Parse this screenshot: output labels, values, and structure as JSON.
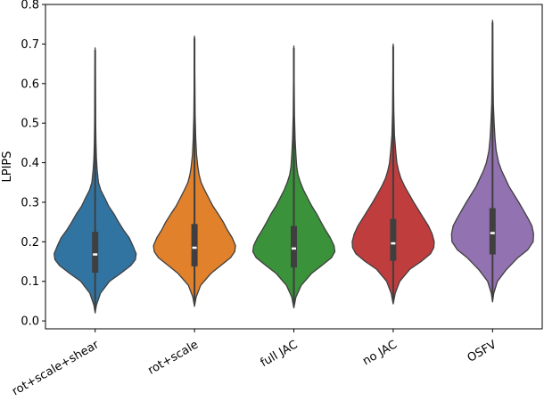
{
  "chart_data": {
    "type": "violin",
    "title": "",
    "xlabel": "",
    "ylabel": "LPIPS",
    "ylim": [
      -0.02,
      0.8
    ],
    "yticks": [
      0.0,
      0.1,
      0.2,
      0.3,
      0.4,
      0.5,
      0.6,
      0.7,
      0.8
    ],
    "ytick_labels": [
      "0.0",
      "0.1",
      "0.2",
      "0.3",
      "0.4",
      "0.5",
      "0.6",
      "0.7",
      "0.8"
    ],
    "categories": [
      "rot+scale+shear",
      "rot+scale",
      "full JAC",
      "no JAC",
      "OSFV"
    ],
    "colors": [
      "#3274a1",
      "#e1812c",
      "#3a923a",
      "#c03d3e",
      "#9372b2"
    ],
    "series": [
      {
        "name": "rot+scale+shear",
        "min": 0.02,
        "q1": 0.122,
        "median": 0.168,
        "q3": 0.225,
        "max": 0.69,
        "whisker_low": 0.04,
        "whisker_high": 0.36,
        "density": [
          [
            0.02,
            0.0
          ],
          [
            0.04,
            0.03
          ],
          [
            0.07,
            0.13
          ],
          [
            0.1,
            0.35
          ],
          [
            0.12,
            0.62
          ],
          [
            0.14,
            0.87
          ],
          [
            0.155,
            0.98
          ],
          [
            0.17,
            1.0
          ],
          [
            0.19,
            0.92
          ],
          [
            0.21,
            0.83
          ],
          [
            0.23,
            0.69
          ],
          [
            0.25,
            0.57
          ],
          [
            0.27,
            0.46
          ],
          [
            0.29,
            0.33
          ],
          [
            0.31,
            0.24
          ],
          [
            0.33,
            0.14
          ],
          [
            0.35,
            0.08
          ],
          [
            0.38,
            0.05
          ],
          [
            0.41,
            0.03
          ],
          [
            0.45,
            0.02
          ],
          [
            0.5,
            0.012
          ],
          [
            0.6,
            0.006
          ],
          [
            0.69,
            0.0
          ]
        ]
      },
      {
        "name": "rot+scale",
        "min": 0.037,
        "q1": 0.138,
        "median": 0.185,
        "q3": 0.245,
        "max": 0.72,
        "whisker_low": 0.05,
        "whisker_high": 0.38,
        "density": [
          [
            0.037,
            0.0
          ],
          [
            0.06,
            0.04
          ],
          [
            0.09,
            0.15
          ],
          [
            0.12,
            0.4
          ],
          [
            0.14,
            0.64
          ],
          [
            0.16,
            0.88
          ],
          [
            0.175,
            0.98
          ],
          [
            0.19,
            1.0
          ],
          [
            0.21,
            0.92
          ],
          [
            0.23,
            0.8
          ],
          [
            0.25,
            0.7
          ],
          [
            0.27,
            0.58
          ],
          [
            0.29,
            0.45
          ],
          [
            0.31,
            0.35
          ],
          [
            0.33,
            0.25
          ],
          [
            0.35,
            0.16
          ],
          [
            0.37,
            0.11
          ],
          [
            0.39,
            0.08
          ],
          [
            0.42,
            0.05
          ],
          [
            0.46,
            0.03
          ],
          [
            0.52,
            0.015
          ],
          [
            0.62,
            0.007
          ],
          [
            0.72,
            0.0
          ]
        ]
      },
      {
        "name": "full JAC",
        "min": 0.033,
        "q1": 0.135,
        "median": 0.183,
        "q3": 0.24,
        "max": 0.695,
        "whisker_low": 0.05,
        "whisker_high": 0.37,
        "density": [
          [
            0.033,
            0.0
          ],
          [
            0.06,
            0.05
          ],
          [
            0.09,
            0.18
          ],
          [
            0.12,
            0.43
          ],
          [
            0.14,
            0.68
          ],
          [
            0.16,
            0.92
          ],
          [
            0.175,
            1.0
          ],
          [
            0.19,
            0.98
          ],
          [
            0.21,
            0.89
          ],
          [
            0.23,
            0.77
          ],
          [
            0.25,
            0.66
          ],
          [
            0.27,
            0.56
          ],
          [
            0.29,
            0.44
          ],
          [
            0.31,
            0.34
          ],
          [
            0.33,
            0.24
          ],
          [
            0.35,
            0.16
          ],
          [
            0.37,
            0.1
          ],
          [
            0.39,
            0.07
          ],
          [
            0.42,
            0.05
          ],
          [
            0.46,
            0.03
          ],
          [
            0.52,
            0.015
          ],
          [
            0.62,
            0.007
          ],
          [
            0.695,
            0.0
          ]
        ]
      },
      {
        "name": "no JAC",
        "min": 0.043,
        "q1": 0.152,
        "median": 0.196,
        "q3": 0.258,
        "max": 0.7,
        "whisker_low": 0.06,
        "whisker_high": 0.39,
        "density": [
          [
            0.043,
            0.0
          ],
          [
            0.07,
            0.05
          ],
          [
            0.1,
            0.16
          ],
          [
            0.13,
            0.4
          ],
          [
            0.15,
            0.68
          ],
          [
            0.17,
            0.91
          ],
          [
            0.185,
            0.99
          ],
          [
            0.2,
            1.0
          ],
          [
            0.22,
            0.95
          ],
          [
            0.24,
            0.86
          ],
          [
            0.26,
            0.74
          ],
          [
            0.28,
            0.62
          ],
          [
            0.3,
            0.5
          ],
          [
            0.32,
            0.39
          ],
          [
            0.34,
            0.28
          ],
          [
            0.36,
            0.19
          ],
          [
            0.38,
            0.13
          ],
          [
            0.4,
            0.09
          ],
          [
            0.43,
            0.06
          ],
          [
            0.47,
            0.03
          ],
          [
            0.53,
            0.015
          ],
          [
            0.62,
            0.007
          ],
          [
            0.7,
            0.0
          ]
        ]
      },
      {
        "name": "OSFV",
        "min": 0.048,
        "q1": 0.168,
        "median": 0.222,
        "q3": 0.285,
        "max": 0.76,
        "whisker_low": 0.08,
        "whisker_high": 0.42,
        "density": [
          [
            0.048,
            0.0
          ],
          [
            0.07,
            0.03
          ],
          [
            0.1,
            0.12
          ],
          [
            0.13,
            0.34
          ],
          [
            0.16,
            0.62
          ],
          [
            0.18,
            0.86
          ],
          [
            0.2,
            0.99
          ],
          [
            0.22,
            1.0
          ],
          [
            0.24,
            0.96
          ],
          [
            0.26,
            0.86
          ],
          [
            0.28,
            0.75
          ],
          [
            0.3,
            0.64
          ],
          [
            0.32,
            0.52
          ],
          [
            0.34,
            0.4
          ],
          [
            0.36,
            0.31
          ],
          [
            0.38,
            0.22
          ],
          [
            0.4,
            0.15
          ],
          [
            0.43,
            0.09
          ],
          [
            0.46,
            0.06
          ],
          [
            0.5,
            0.04
          ],
          [
            0.55,
            0.02
          ],
          [
            0.65,
            0.008
          ],
          [
            0.76,
            0.0
          ]
        ]
      }
    ],
    "grid": false,
    "legend": "none"
  }
}
